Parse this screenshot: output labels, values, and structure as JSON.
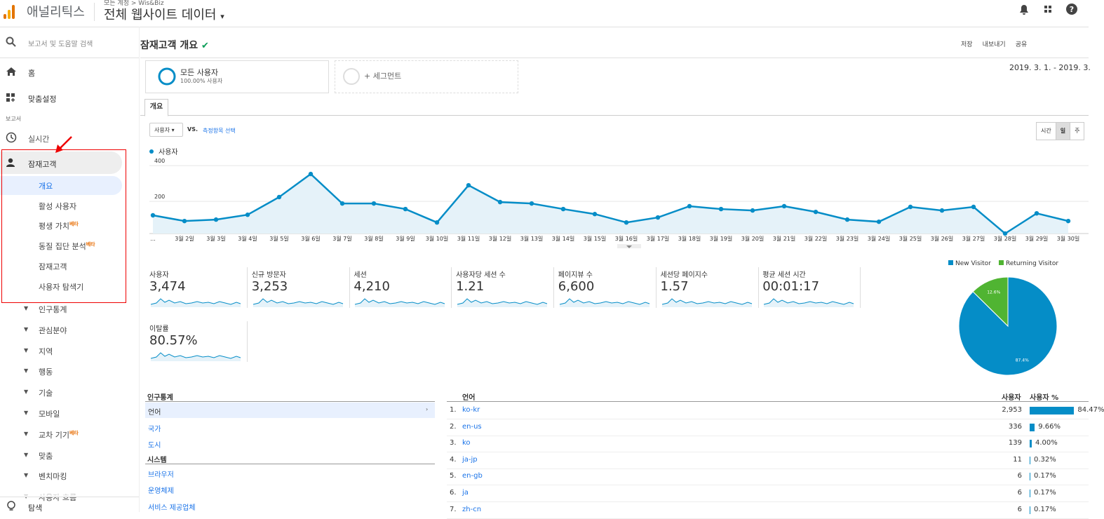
{
  "header": {
    "product": "애널리틱스",
    "breadcrumb": "모든 계정 > Wis&Biz",
    "property": "전체 웹사이트 데이터"
  },
  "sidebar": {
    "search": "보고서 및 도움말 검색",
    "home": "홈",
    "customization": "맞춤설정",
    "section": "보고서",
    "realtime": "실시간",
    "audience": "잠재고객",
    "audience_items": [
      {
        "label": "개요"
      },
      {
        "label": "활성 사용자"
      },
      {
        "label": "평생 가치",
        "badge": "베타"
      },
      {
        "label": "동질 집단 분석",
        "badge": "베타"
      },
      {
        "label": "잠재고객"
      },
      {
        "label": "사용자 탐색기"
      }
    ],
    "expandable": [
      {
        "label": "인구통계"
      },
      {
        "label": "관심분야"
      },
      {
        "label": "지역"
      },
      {
        "label": "행동"
      },
      {
        "label": "기술"
      },
      {
        "label": "모바일"
      },
      {
        "label": "교차 기기",
        "badge": "베타"
      },
      {
        "label": "맞춤"
      },
      {
        "label": "벤치마킹"
      },
      {
        "label": "사용자 흐름"
      }
    ],
    "discover": "탐색"
  },
  "main": {
    "title": "잠재고객 개요",
    "actions": [
      "저장",
      "내보내기",
      "공유"
    ],
    "date_range": "2019. 3. 1. - 2019. 3.",
    "segments": [
      {
        "name": "모든 사용자",
        "detail": "100.00% 사용자"
      },
      {
        "name": "+ 세그먼트"
      }
    ],
    "tab": "개요",
    "metric": "사용자",
    "vs": "VS.",
    "select_metric": "측정항목 선택",
    "granularity": [
      "시간",
      "일",
      "주"
    ]
  },
  "chart_data": [
    {
      "type": "line",
      "categories": [
        "...",
        "3월 2일",
        "3월 3일",
        "3월 4일",
        "3월 5일",
        "3월 6일",
        "3월 7일",
        "3월 8일",
        "3월 9일",
        "3월 10일",
        "3월 11일",
        "3월 12일",
        "3월 13일",
        "3월 14일",
        "3월 15일",
        "3월 16일",
        "3월 17일",
        "3월 18일",
        "3월 19일",
        "3월 20일",
        "3월 21일",
        "3월 22일",
        "3월 23일",
        "3월 24일",
        "3월 25일",
        "3월 26일",
        "3월 27일",
        "3월 28일",
        "3월 29일",
        "3월 30일"
      ],
      "series": [
        {
          "name": "사용자",
          "color": "#058dc7",
          "values": [
            122,
            90,
            98,
            125,
            224,
            353,
            188,
            188,
            157,
            82,
            290,
            196,
            188,
            157,
            129,
            82,
            110,
            173,
            157,
            149,
            173,
            141,
            98,
            86,
            169,
            149,
            169,
            20,
            133,
            90
          ]
        }
      ],
      "ylim": [
        20,
        420
      ],
      "yticks": [
        200,
        400
      ],
      "grid": true
    },
    {
      "type": "pie",
      "categories": [
        "New Visitor",
        "Returning Visitor"
      ],
      "values": [
        87.4,
        12.6
      ],
      "value_labels": [
        "87.4%",
        "12.6%"
      ],
      "colors": [
        "#058dc7",
        "#50b432"
      ]
    }
  ],
  "scorecards": [
    {
      "label": "사용자",
      "value": "3,474"
    },
    {
      "label": "신규 방문자",
      "value": "3,253"
    },
    {
      "label": "세션",
      "value": "4,210"
    },
    {
      "label": "사용자당 세션 수",
      "value": "1.21"
    },
    {
      "label": "페이지뷰 수",
      "value": "6,600"
    },
    {
      "label": "세션당 페이지수",
      "value": "1.57"
    },
    {
      "label": "평균 세션 시간",
      "value": "00:01:17"
    },
    {
      "label": "이탈률",
      "value": "80.57%"
    }
  ],
  "demographics": [
    {
      "title": "인구통계",
      "items": [
        "언어",
        "국가",
        "도시"
      ]
    },
    {
      "title": "시스템",
      "items": [
        "브라우저",
        "운영체제",
        "서비스 제공업체"
      ]
    }
  ],
  "language_table": {
    "headers": [
      "언어",
      "사용자",
      "사용자 %"
    ],
    "rows": [
      {
        "rank": "1.",
        "language": "ko-kr",
        "users": "2,953",
        "pct": 84.47,
        "pct_label": "84.47%"
      },
      {
        "rank": "2.",
        "language": "en-us",
        "users": "336",
        "pct": 9.66,
        "pct_label": "9.66%"
      },
      {
        "rank": "3.",
        "language": "ko",
        "users": "139",
        "pct": 4.0,
        "pct_label": "4.00%"
      },
      {
        "rank": "4.",
        "language": "ja-jp",
        "users": "11",
        "pct": 0.32,
        "pct_label": "0.32%"
      },
      {
        "rank": "5.",
        "language": "en-gb",
        "users": "6",
        "pct": 0.17,
        "pct_label": "0.17%"
      },
      {
        "rank": "6.",
        "language": "ja",
        "users": "6",
        "pct": 0.17,
        "pct_label": "0.17%"
      },
      {
        "rank": "7.",
        "language": "zh-cn",
        "users": "6",
        "pct": 0.17,
        "pct_label": "0.17%"
      }
    ]
  }
}
